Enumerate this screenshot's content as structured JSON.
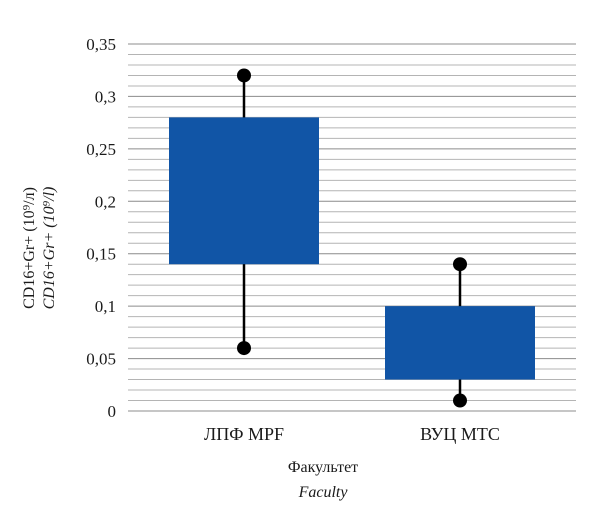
{
  "chart_data": {
    "type": "box",
    "categories": [
      {
        "ru": "ЛПФ",
        "en": "MPF"
      },
      {
        "ru": "ВУЦ",
        "en": "MTC"
      }
    ],
    "boxes": [
      {
        "min": 0.06,
        "q1": 0.14,
        "q3": 0.28,
        "max": 0.32
      },
      {
        "min": 0.01,
        "q1": 0.03,
        "q3": 0.1,
        "max": 0.14
      }
    ],
    "ylim": [
      0,
      0.35
    ],
    "yticks": [
      0,
      0.05,
      0.1,
      0.15,
      0.2,
      0.25,
      0.3,
      0.35
    ],
    "ytick_labels": [
      "0",
      "0,05",
      "0,1",
      "0,15",
      "0,2",
      "0,25",
      "0,3",
      "0,35"
    ],
    "minor_grid_step": 0.01,
    "grid": true,
    "ylabel_ru": "CD16+Gr+ (10⁹/л)",
    "ylabel_en": "CD16+Gr+ (10⁹/l)",
    "xlabel_ru": "Факультет",
    "xlabel_en": "Faculty",
    "colors": {
      "box": "#1155a6",
      "marker": "#000000",
      "grid": "#b4b4b4"
    }
  }
}
